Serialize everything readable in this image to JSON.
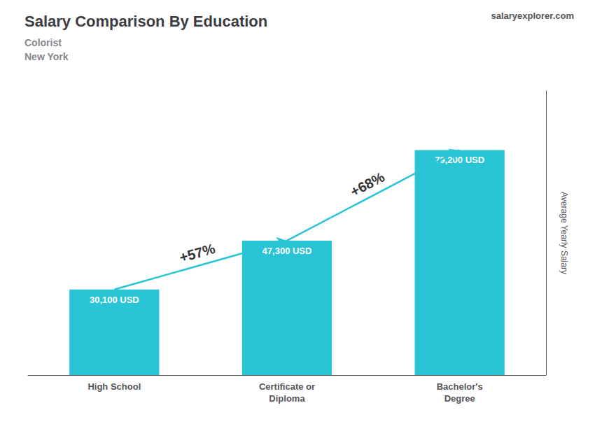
{
  "chart_data": {
    "type": "bar",
    "title": "Salary Comparison By Education",
    "subtitle": [
      "Colorist",
      "New York"
    ],
    "ylabel": "Average Yearly Salary",
    "categories": [
      "High School",
      "Certificate or\nDiploma",
      "Bachelor's\nDegree"
    ],
    "values": [
      30100,
      47300,
      79200
    ],
    "value_labels": [
      "30,100 USD",
      "47,300 USD",
      "79,200 USD"
    ],
    "data_labels": true,
    "color": "#29c5d6",
    "ylim": [
      0,
      100000
    ],
    "grid": false,
    "tick_labels": "x",
    "annotations": [
      {
        "text": "salaryexplorer.com"
      },
      {
        "text": "+57%",
        "from": "High School",
        "to": "Certificate or\nDiploma"
      },
      {
        "text": "+68%",
        "from": "Certificate or\nDiploma",
        "to": "Bachelor's\nDegree"
      }
    ]
  }
}
